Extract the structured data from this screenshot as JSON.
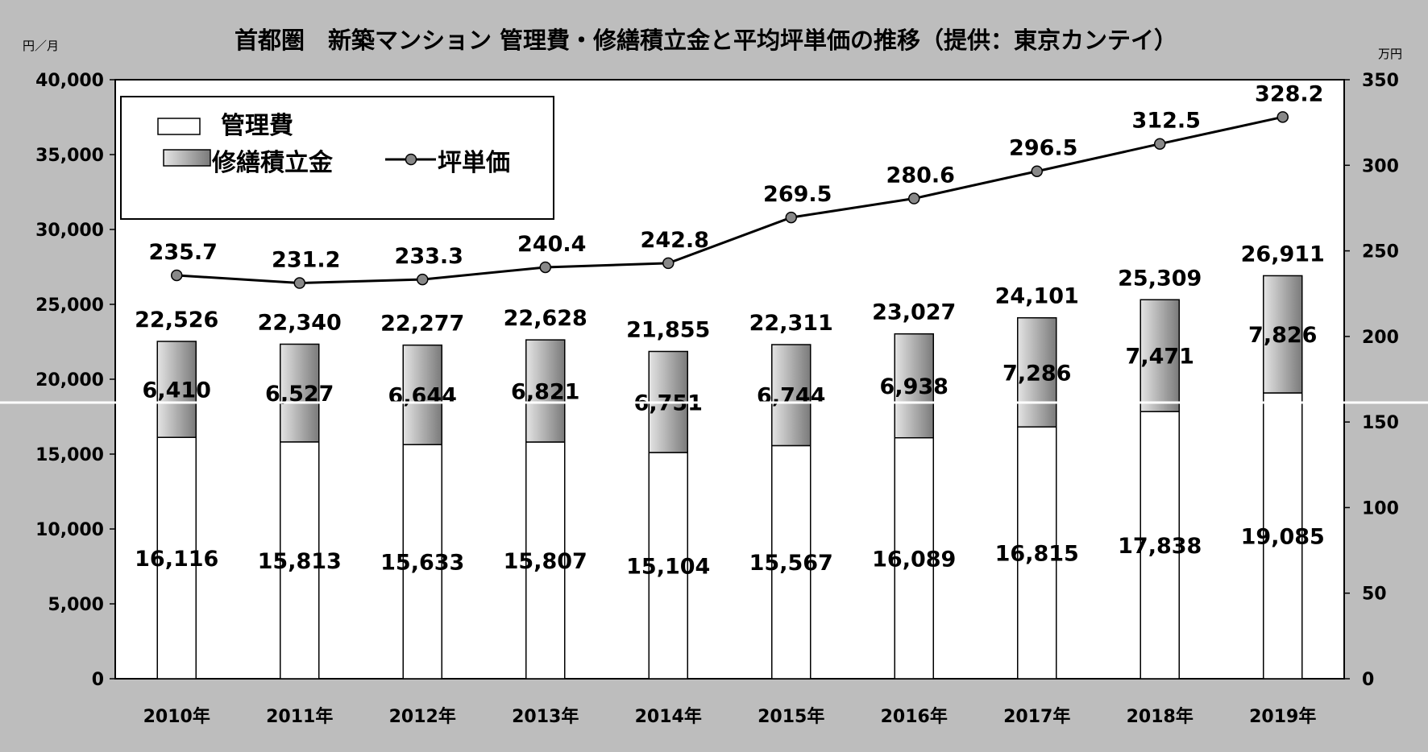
{
  "chart_data": {
    "type": "bar",
    "title": "首都圏　新築マンション 管理費・修繕積立金と平均坪単価の推移（提供：東京カンテイ）",
    "y_left_unit": "円／月",
    "y_right_unit": "万円",
    "categories": [
      "2010年",
      "2011年",
      "2012年",
      "2013年",
      "2014年",
      "2015年",
      "2016年",
      "2017年",
      "2018年",
      "2019年"
    ],
    "y_left_range": [
      0,
      40000
    ],
    "y_left_ticks": [
      "0",
      "5,000",
      "10,000",
      "15,000",
      "20,000",
      "25,000",
      "30,000",
      "35,000",
      "40,000"
    ],
    "y_right_range": [
      0,
      350
    ],
    "y_right_ticks": [
      "0",
      "50",
      "100",
      "150",
      "200",
      "250",
      "300",
      "350"
    ],
    "series": [
      {
        "name": "管理費",
        "kind": "stacked-bar",
        "axis": "left",
        "color": "#ffffff",
        "values": [
          16116,
          15813,
          15633,
          15807,
          15104,
          15567,
          16089,
          16815,
          17838,
          19085
        ],
        "labels": [
          "16,116",
          "15,813",
          "15,633",
          "15,807",
          "15,104",
          "15,567",
          "16,089",
          "16,815",
          "17,838",
          "19,085"
        ]
      },
      {
        "name": "修繕積立金",
        "kind": "stacked-bar",
        "axis": "left",
        "color": "#a0a0a0",
        "values": [
          6410,
          6527,
          6644,
          6821,
          6751,
          6744,
          6938,
          7286,
          7471,
          7826
        ],
        "labels": [
          "6,410",
          "6,527",
          "6,644",
          "6,821",
          "6,751",
          "6,744",
          "6,938",
          "7,286",
          "7,471",
          "7,826"
        ]
      },
      {
        "name": "坪単価",
        "kind": "line",
        "axis": "right",
        "color": "#000000",
        "values": [
          235.7,
          231.2,
          233.3,
          240.4,
          242.8,
          269.5,
          280.6,
          296.5,
          312.5,
          328.2
        ],
        "labels": [
          "235.7",
          "231.2",
          "233.3",
          "240.4",
          "242.8",
          "269.5",
          "280.6",
          "296.5",
          "312.5",
          "328.2"
        ]
      }
    ],
    "totals": {
      "values": [
        22526,
        22340,
        22277,
        22628,
        21855,
        22311,
        23027,
        24101,
        25309,
        26911
      ],
      "labels": [
        "22,526",
        "22,340",
        "22,277",
        "22,628",
        "21,855",
        "22,311",
        "23,027",
        "24,101",
        "25,309",
        "26,911"
      ]
    },
    "legend_position": "top-left",
    "grid": false
  }
}
